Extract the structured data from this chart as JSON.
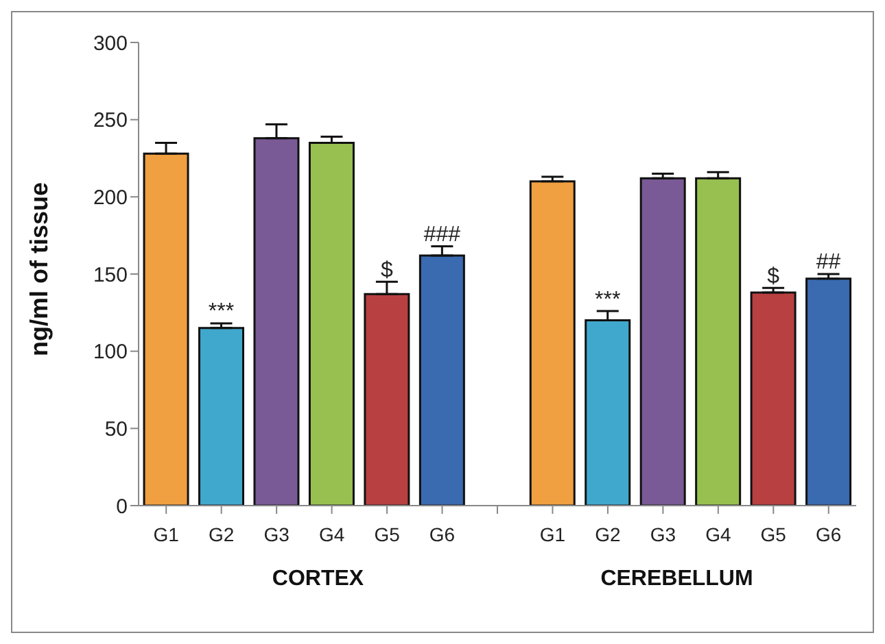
{
  "chart_data": {
    "type": "bar",
    "ylabel": "ng/ml of tissue",
    "categories": [
      "G1",
      "G2",
      "G3",
      "G4",
      "G5",
      "G6",
      null,
      "G1",
      "G2",
      "G3",
      "G4",
      "G5",
      "G6"
    ],
    "values": [
      228,
      115,
      238,
      235,
      137,
      162,
      null,
      210,
      120,
      212,
      212,
      138,
      147
    ],
    "colors": [
      "#f0a040",
      "#40a8cc",
      "#7a5a96",
      "#98c050",
      "#b84040",
      "#3a6ab0",
      "#ffffff",
      "#f0a040",
      "#40a8cc",
      "#7a5a96",
      "#98c050",
      "#b84040",
      "#3a6ab0"
    ],
    "errors": [
      [
        228,
        235
      ],
      [
        115,
        118
      ],
      [
        238,
        247
      ],
      [
        235,
        239
      ],
      [
        137,
        145
      ],
      [
        162,
        168
      ],
      null,
      [
        210,
        213
      ],
      [
        120,
        126
      ],
      [
        212,
        215
      ],
      [
        212,
        216
      ],
      [
        138,
        141
      ],
      [
        147,
        150
      ]
    ],
    "value_labels": [
      null,
      "***",
      null,
      null,
      "$",
      "###",
      null,
      null,
      "***",
      null,
      null,
      "$",
      "##"
    ],
    "annotations": [
      "CORTEX",
      "CEREBELLUM"
    ],
    "ylim": [
      0,
      300
    ],
    "yticks": [
      0,
      50,
      100,
      150,
      200,
      250,
      300
    ],
    "grid": false,
    "legend": false
  }
}
